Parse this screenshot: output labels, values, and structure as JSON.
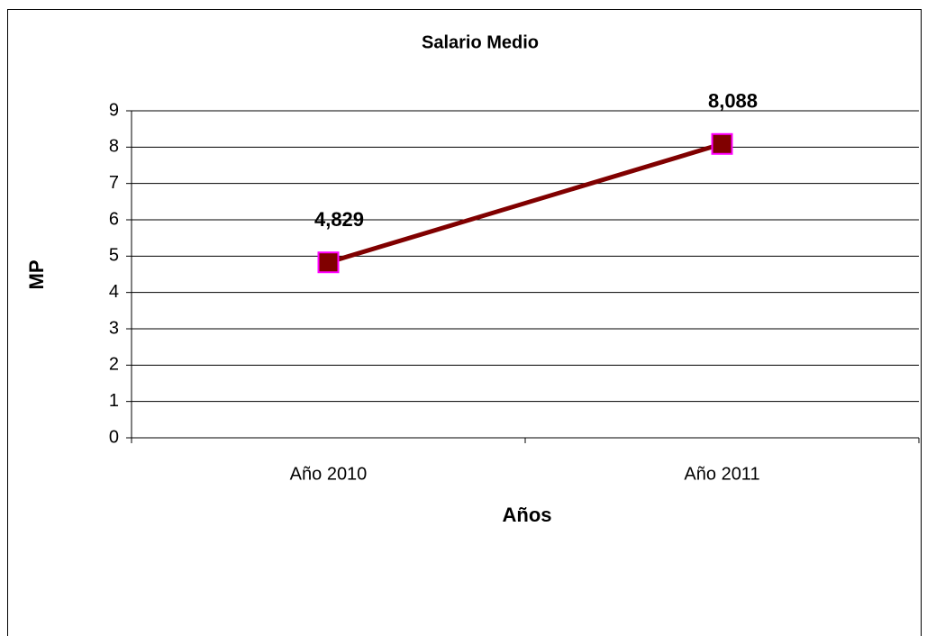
{
  "chart_data": {
    "type": "line",
    "title": "Salario Medio",
    "x_label": "Años",
    "y_label": "MP",
    "categories": [
      "Año 2010",
      "Año 2011"
    ],
    "series": [
      {
        "name": "Salario Medio",
        "color": "#800000",
        "marker_edge": "#ff00ff",
        "values": [
          4.829,
          8.088
        ],
        "value_labels": [
          "4,829",
          "8,088"
        ]
      }
    ],
    "ylim": [
      0,
      9
    ],
    "yticks": [
      0,
      1,
      2,
      3,
      4,
      5,
      6,
      7,
      8,
      9
    ],
    "grid": true
  }
}
